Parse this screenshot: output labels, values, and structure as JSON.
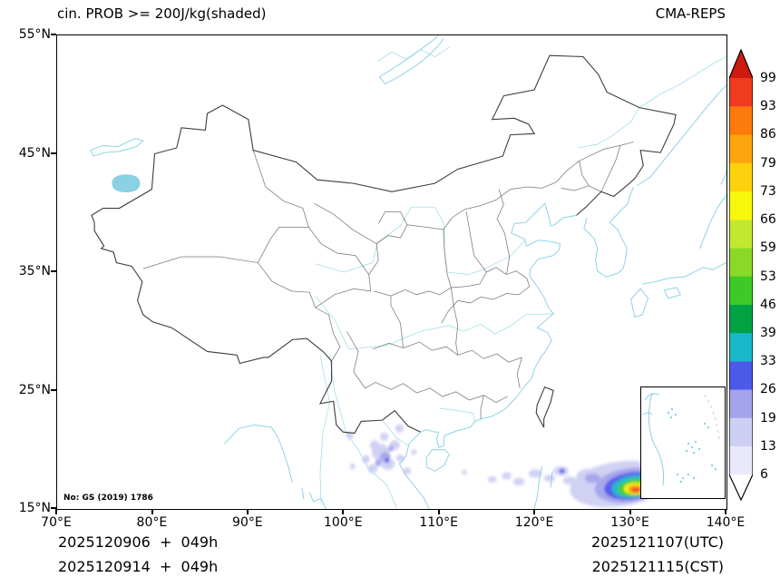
{
  "header": {
    "title": "cin. PROB >= 200J/kg(shaded)",
    "model_label": "CMA-REPS"
  },
  "axes": {
    "lat_ticks": [
      "55°N",
      "45°N",
      "35°N",
      "25°N",
      "15°N"
    ],
    "lon_ticks": [
      "70°E",
      "80°E",
      "90°E",
      "100°E",
      "110°E",
      "120°E",
      "130°E",
      "140°E"
    ]
  },
  "colorbar": {
    "tick_values_top_to_bottom": [
      99,
      93,
      86,
      79,
      73,
      66,
      59,
      53,
      46,
      39,
      33,
      26,
      19,
      13,
      6
    ],
    "cell_colors_bottom_to_top": [
      "#e9e9fb",
      "#cfcff4",
      "#a3a3ec",
      "#4b5ae8",
      "#19b8c8",
      "#00a241",
      "#3fc926",
      "#8ad926",
      "#c3e82e",
      "#f7f70c",
      "#fdd20c",
      "#fda50c",
      "#fd7a0c",
      "#f03b1f"
    ],
    "over_color": "#cf1a10",
    "under_color": "#ffffff"
  },
  "map": {
    "license_note": "No: GS (2019) 1786",
    "line_colors": {
      "country_border": "#3d3d3d",
      "province_border": "#787878",
      "coast_river": "#8ad1e4"
    },
    "shaded_regions": [
      {
        "area": "western Pacific east of Luzon (~123-134°E, 15-18.5°N)",
        "peak_band": "93-99+"
      },
      {
        "area": "Indochina peninsula (~101-108°E, 17-23°N)",
        "peak_band": "6-33"
      }
    ]
  },
  "footer": {
    "left_lines": [
      "2025120906  +  049h",
      "2025120914  +  049h"
    ],
    "right_lines": [
      "2025121107(UTC)",
      "2025121115(CST)"
    ]
  }
}
